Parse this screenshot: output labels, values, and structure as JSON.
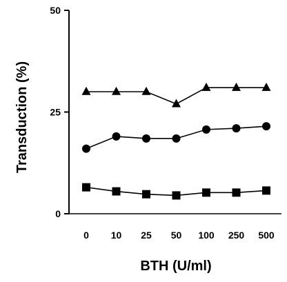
{
  "chart_data": {
    "type": "line",
    "xlabel": "BTH (U/ml)",
    "ylabel": "Transduction (%)",
    "categories": [
      "0",
      "10",
      "25",
      "50",
      "100",
      "250",
      "500"
    ],
    "y_ticks": [
      "0",
      "25",
      "50"
    ],
    "ylim": [
      0,
      50
    ],
    "grid": false,
    "legend": "none",
    "series": [
      {
        "marker": "triangle",
        "color": "#000000",
        "values": [
          30,
          30,
          30,
          27,
          31,
          31,
          31
        ]
      },
      {
        "marker": "circle",
        "color": "#000000",
        "values": [
          16,
          19,
          18.5,
          18.5,
          20.7,
          21,
          21.5
        ]
      },
      {
        "marker": "square",
        "color": "#000000",
        "values": [
          6.5,
          5.5,
          4.8,
          4.5,
          5.2,
          5.2,
          5.7
        ]
      }
    ]
  }
}
